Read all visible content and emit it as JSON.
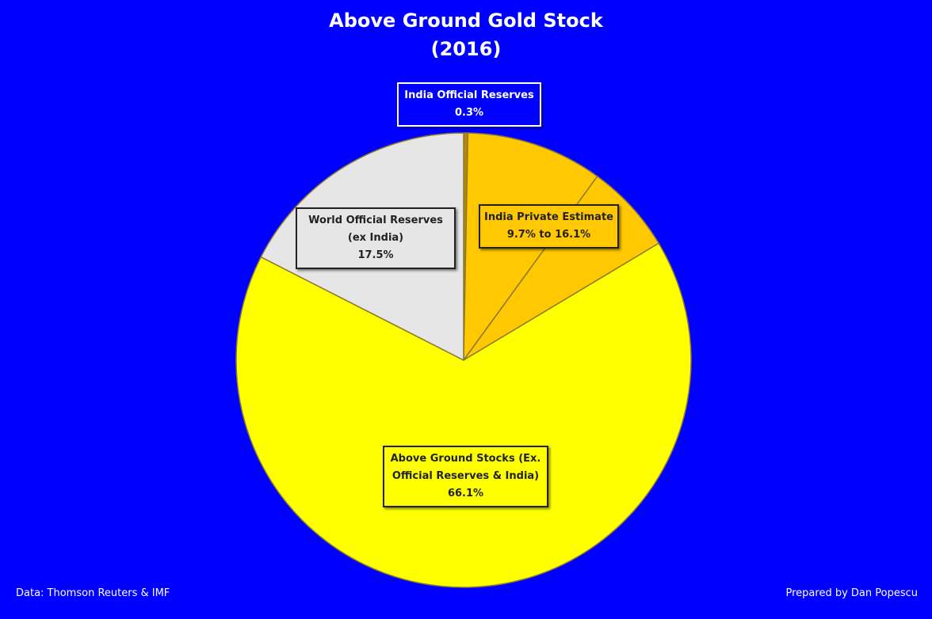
{
  "chart_data": {
    "type": "pie",
    "title": "Above Ground Gold Stock",
    "subtitle": "(2016)",
    "categories": [
      "India Official Reserves",
      "India Private Estimate",
      null,
      "Above Ground Stocks (Ex. Official Reserves & India)",
      "World Official Reserves (ex India)"
    ],
    "values": [
      0.3,
      9.7,
      6.4,
      66.1,
      17.5
    ],
    "value_labels": [
      "0.3%",
      "9.7% to 16.1%",
      null,
      "66.1%",
      "17.5%"
    ],
    "colors": [
      "#b8860b",
      "#ffc800",
      "#ffc800",
      "#ffff00",
      "#e6e6e6"
    ],
    "source": "Data: Thomson Reuters  & IMF",
    "credit": "Prepared by Dan Popescu"
  }
}
